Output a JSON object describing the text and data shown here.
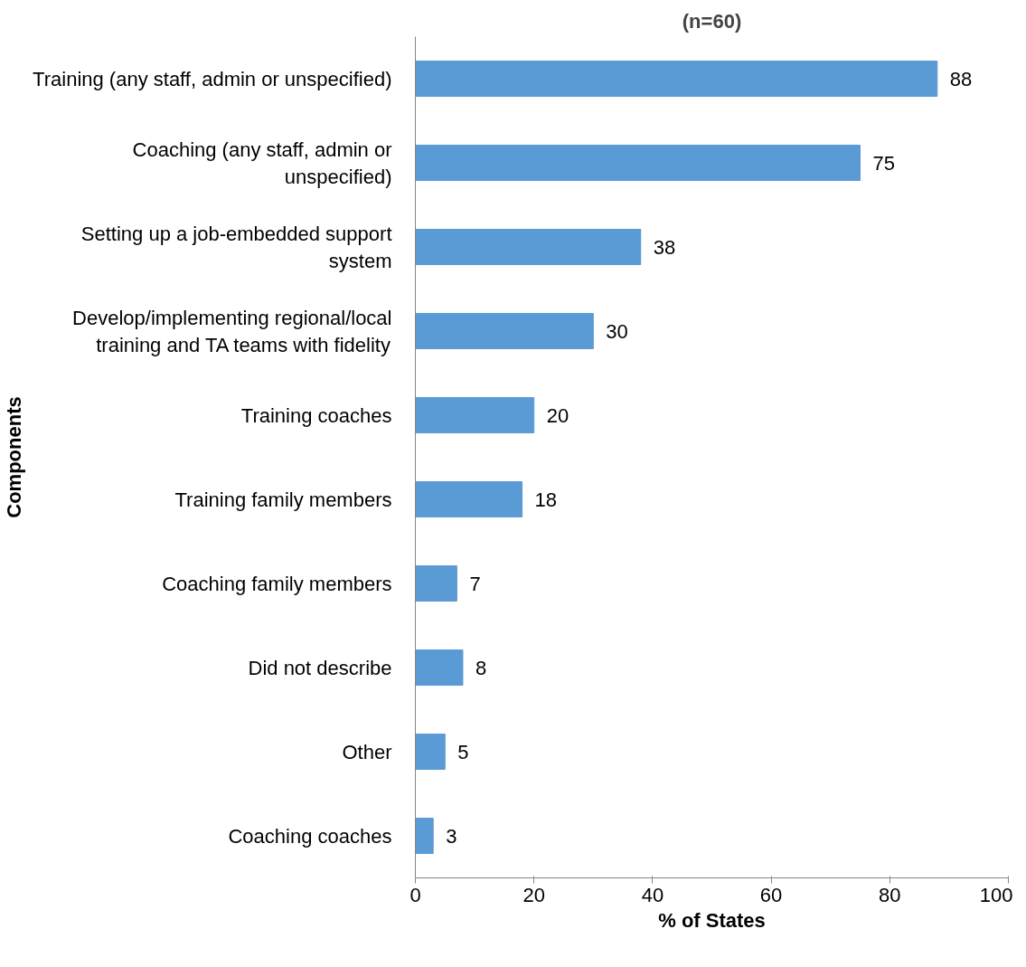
{
  "chart_data": {
    "type": "bar",
    "orientation": "horizontal",
    "title": "(n=60)",
    "xlabel": "% of States",
    "ylabel": "Components",
    "categories": [
      "Training (any staff, admin or unspecified)",
      "Coaching (any staff, admin or unspecified)",
      "Setting up a job-embedded support system",
      "Develop/implementing regional/local training and TA teams with fidelity",
      "Training coaches",
      "Training family members",
      "Coaching family members",
      "Did not describe",
      "Other",
      "Coaching coaches"
    ],
    "values": [
      88,
      75,
      38,
      30,
      20,
      18,
      7,
      8,
      5,
      3
    ],
    "color": "#5b9bd5",
    "xlim": [
      0,
      100
    ],
    "xticks": [
      0,
      20,
      40,
      60,
      80,
      100
    ],
    "data_labels": true
  }
}
